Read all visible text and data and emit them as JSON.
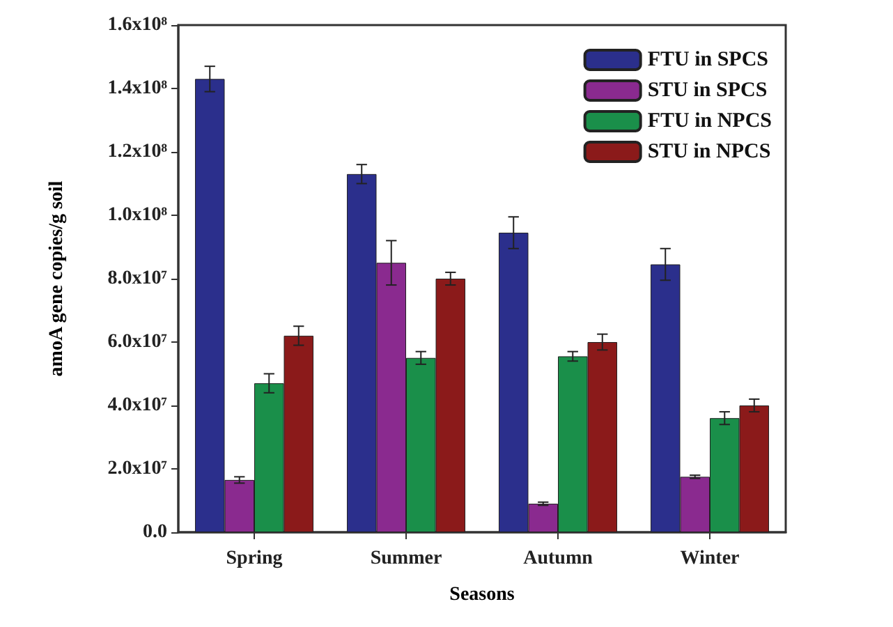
{
  "chart_data": {
    "type": "bar",
    "xlabel": "Seasons",
    "ylabel": "amoA gene copies/g soil",
    "categories": [
      "Spring",
      "Summer",
      "Autumn",
      "Winter"
    ],
    "series": [
      {
        "name": "FTU in SPCS",
        "color": "#2b2f8c",
        "values": [
          143000000,
          113000000,
          94500000,
          84500000
        ],
        "errors": [
          4000000,
          3000000,
          5000000,
          5000000
        ]
      },
      {
        "name": "STU in SPCS",
        "color": "#8a2a8f",
        "values": [
          16500000,
          85000000,
          9000000,
          17500000
        ],
        "errors": [
          1000000,
          7000000,
          500000,
          500000
        ]
      },
      {
        "name": "FTU in NPCS",
        "color": "#1a8f4a",
        "values": [
          47000000,
          55000000,
          55500000,
          36000000
        ],
        "errors": [
          3000000,
          2000000,
          1500000,
          2000000
        ]
      },
      {
        "name": "STU in NPCS",
        "color": "#8b1a1a",
        "values": [
          62000000,
          80000000,
          60000000,
          40000000
        ],
        "errors": [
          3000000,
          2000000,
          2500000,
          2000000
        ]
      }
    ],
    "ylim": [
      0,
      160000000
    ],
    "yticks": [
      {
        "value": 0,
        "label": "0.0"
      },
      {
        "value": 20000000,
        "label": "2.0x10⁷"
      },
      {
        "value": 40000000,
        "label": "4.0x10⁷"
      },
      {
        "value": 60000000,
        "label": "6.0x10⁷"
      },
      {
        "value": 80000000,
        "label": "8.0x10⁷"
      },
      {
        "value": 100000000,
        "label": "1.0x10⁸"
      },
      {
        "value": 120000000,
        "label": "1.2x10⁸"
      },
      {
        "value": 140000000,
        "label": "1.4x10⁸"
      },
      {
        "value": 160000000,
        "label": "1.6x10⁸"
      }
    ],
    "grid": false,
    "legend": "top right"
  }
}
